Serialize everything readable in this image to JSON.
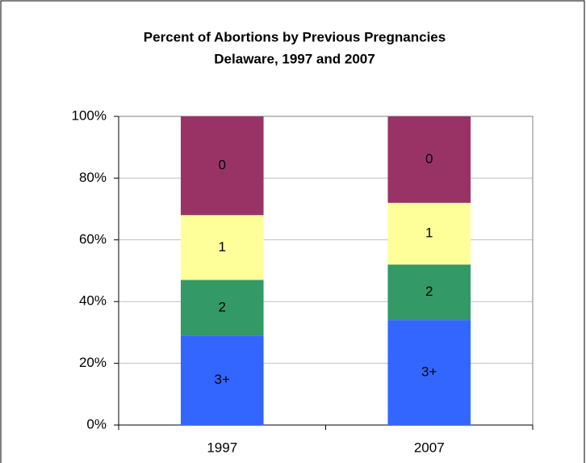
{
  "chart_data": {
    "type": "stacked_bar",
    "title": "Percent of Abortions by Previous Pregnancies",
    "subtitle": "Delaware, 1997 and 2007",
    "categories": [
      "1997",
      "2007"
    ],
    "series": [
      {
        "name": "3+",
        "color": "#3366ff",
        "values": [
          29,
          34
        ]
      },
      {
        "name": "2",
        "color": "#339966",
        "values": [
          18,
          18
        ]
      },
      {
        "name": "1",
        "color": "#ffff99",
        "values": [
          21,
          20
        ]
      },
      {
        "name": "0",
        "color": "#993366",
        "values": [
          32,
          28
        ]
      }
    ],
    "ylim": [
      0,
      100
    ],
    "yticks": [
      {
        "value": 0,
        "label": "0%"
      },
      {
        "value": 20,
        "label": "20%"
      },
      {
        "value": 40,
        "label": "40%"
      },
      {
        "value": 60,
        "label": "60%"
      },
      {
        "value": 80,
        "label": "80%"
      },
      {
        "value": 100,
        "label": "100%"
      }
    ],
    "grid": true
  }
}
